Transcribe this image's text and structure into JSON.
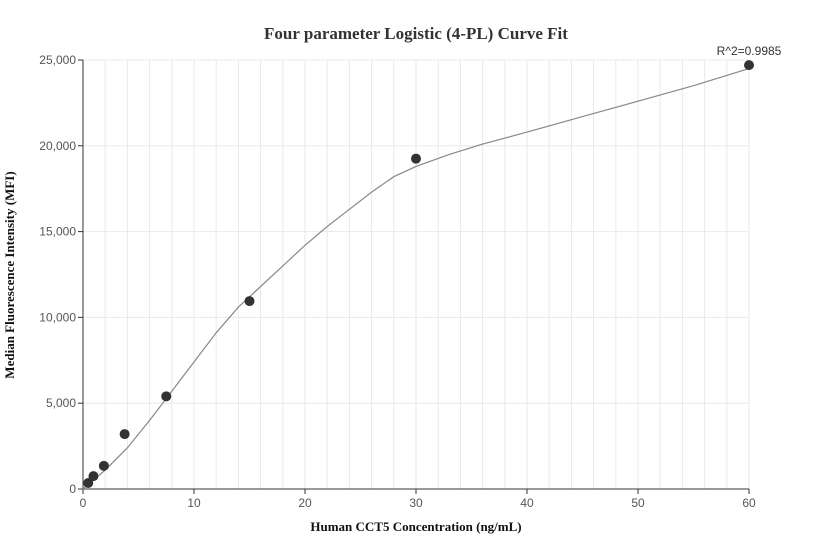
{
  "chart_data": {
    "type": "scatter",
    "title": "Four parameter Logistic (4-PL) Curve Fit",
    "xlabel": "Human CCT5 Concentration (ng/mL)",
    "ylabel": "Median Fluorescence Intensity (MFI)",
    "xlim": [
      0,
      60
    ],
    "ylim": [
      0,
      25000
    ],
    "x_ticks": [
      0,
      10,
      20,
      30,
      40,
      50,
      60
    ],
    "y_ticks": [
      0,
      5000,
      10000,
      15000,
      20000,
      25000
    ],
    "x_tick_labels": [
      "0",
      "10",
      "20",
      "30",
      "40",
      "50",
      "60"
    ],
    "y_tick_labels": [
      "0",
      "5,000",
      "10,000",
      "15,000",
      "20,000",
      "25,000"
    ],
    "grid": true,
    "annotation": "R^2=0.9985",
    "points": [
      {
        "x": 0.47,
        "y": 350
      },
      {
        "x": 0.94,
        "y": 750
      },
      {
        "x": 1.88,
        "y": 1350
      },
      {
        "x": 3.75,
        "y": 3200
      },
      {
        "x": 7.5,
        "y": 5400
      },
      {
        "x": 15,
        "y": 10950
      },
      {
        "x": 30,
        "y": 19250
      },
      {
        "x": 60,
        "y": 24700
      }
    ],
    "fit_curve": [
      {
        "x": 0,
        "y": 0
      },
      {
        "x": 2,
        "y": 1100
      },
      {
        "x": 4,
        "y": 2400
      },
      {
        "x": 6,
        "y": 4000
      },
      {
        "x": 8,
        "y": 5700
      },
      {
        "x": 10,
        "y": 7400
      },
      {
        "x": 12,
        "y": 9100
      },
      {
        "x": 14,
        "y": 10600
      },
      {
        "x": 16,
        "y": 11800
      },
      {
        "x": 18,
        "y": 13000
      },
      {
        "x": 20,
        "y": 14200
      },
      {
        "x": 22,
        "y": 15300
      },
      {
        "x": 24,
        "y": 16300
      },
      {
        "x": 26,
        "y": 17300
      },
      {
        "x": 28,
        "y": 18200
      },
      {
        "x": 30,
        "y": 18800
      },
      {
        "x": 33,
        "y": 19500
      },
      {
        "x": 36,
        "y": 20100
      },
      {
        "x": 40,
        "y": 20800
      },
      {
        "x": 45,
        "y": 21700
      },
      {
        "x": 50,
        "y": 22600
      },
      {
        "x": 55,
        "y": 23500
      },
      {
        "x": 60,
        "y": 24500
      }
    ],
    "colors": {
      "point": "#333333",
      "curve": "#888888",
      "grid": "#e8e8ef",
      "axis": "#333333"
    }
  }
}
